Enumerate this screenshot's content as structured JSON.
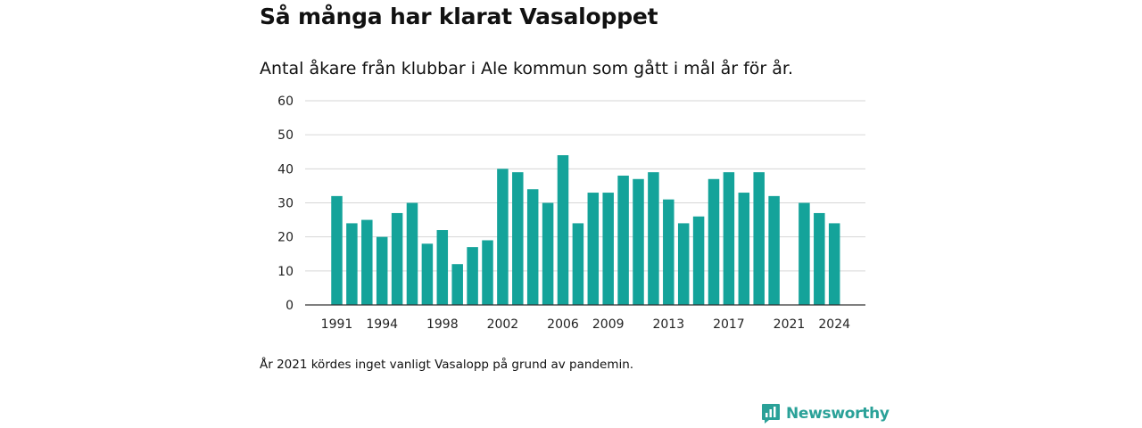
{
  "title": "Så många har klarat Vasaloppet",
  "subtitle": "Antal åkare från klubbar i Ale kommun som gått i mål år för år.",
  "footnote": "År 2021 kördes inget vanligt Vasalopp på grund av pandemin.",
  "brand": {
    "name": "Newsworthy",
    "icon": "newsworthy-logo-icon",
    "color": "#2aa198"
  },
  "chart_data": {
    "type": "bar",
    "title": "Så många har klarat Vasaloppet",
    "subtitle": "Antal åkare från klubbar i Ale kommun som gått i mål år för år.",
    "xlabel": "",
    "ylabel": "",
    "bar_color": "#14a39a",
    "grid": true,
    "ylim": [
      0,
      60
    ],
    "yticks": [
      0,
      10,
      20,
      30,
      40,
      50,
      60
    ],
    "xtick_labels": [
      "1991",
      "1994",
      "1998",
      "2002",
      "2006",
      "2009",
      "2013",
      "2017",
      "2021",
      "2024"
    ],
    "categories": [
      "1991",
      "1992",
      "1993",
      "1994",
      "1995",
      "1996",
      "1997",
      "1998",
      "1999",
      "2000",
      "2001",
      "2002",
      "2003",
      "2004",
      "2005",
      "2006",
      "2007",
      "2008",
      "2009",
      "2010",
      "2011",
      "2012",
      "2013",
      "2014",
      "2015",
      "2016",
      "2017",
      "2018",
      "2019",
      "2020",
      "2021",
      "2022",
      "2023",
      "2024"
    ],
    "values": [
      32,
      24,
      25,
      20,
      27,
      30,
      18,
      22,
      12,
      17,
      19,
      40,
      39,
      34,
      30,
      44,
      24,
      33,
      33,
      38,
      37,
      39,
      31,
      24,
      26,
      37,
      39,
      33,
      39,
      32,
      null,
      30,
      27,
      24
    ]
  }
}
